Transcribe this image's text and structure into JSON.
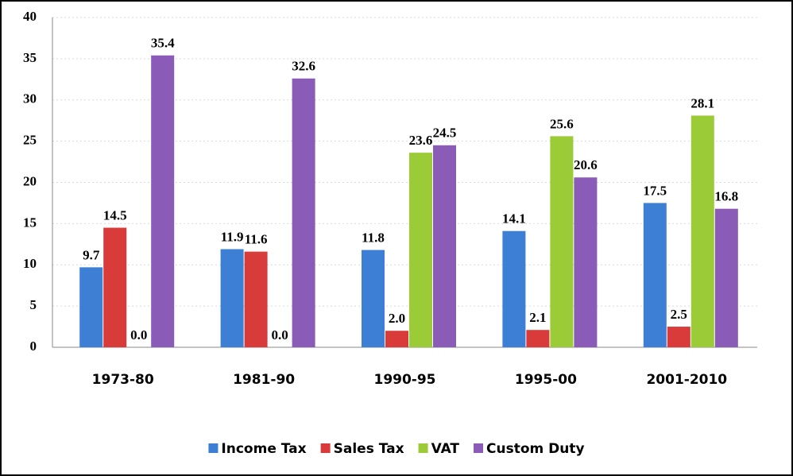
{
  "chart_data": {
    "type": "bar",
    "categories": [
      "1973-80",
      "1981-90",
      "1990-95",
      "1995-00",
      "2001-2010"
    ],
    "series": [
      {
        "name": "Income Tax",
        "color": "#3d7fd4",
        "values": [
          9.7,
          11.9,
          11.8,
          14.1,
          17.5
        ],
        "value_labels": [
          "9.7",
          "11.9",
          "11.8",
          "14.1",
          "17.5"
        ]
      },
      {
        "name": "Sales Tax",
        "color": "#d93a3a",
        "values": [
          14.5,
          11.6,
          2,
          2.1,
          2.5
        ],
        "value_labels": [
          "14.5",
          "11.6",
          "2.0",
          "2.1",
          "2.5"
        ]
      },
      {
        "name": "VAT",
        "color": "#9bcb36",
        "values": [
          0,
          0,
          23.6,
          25.6,
          28.1
        ],
        "value_labels": [
          "0.0",
          "0.0",
          "23.6",
          "25.6",
          "28.1"
        ]
      },
      {
        "name": "Custom Duty",
        "color": "#8a5cb8",
        "values": [
          35.4,
          32.6,
          24.5,
          20.6,
          16.8
        ],
        "value_labels": [
          "35.4",
          "32.6",
          "24.5",
          "20.6",
          "16.8"
        ]
      }
    ],
    "ylim": [
      0,
      40
    ],
    "yticks": [
      0,
      5,
      10,
      15,
      20,
      25,
      30,
      35,
      40
    ],
    "grid": true,
    "legend": "bottom"
  }
}
